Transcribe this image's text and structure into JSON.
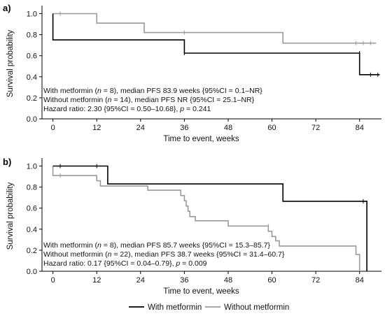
{
  "figure": {
    "legend": [
      {
        "label": "With metformin",
        "color": "#000000"
      },
      {
        "label": "Without metformin",
        "color": "#9a9a9a"
      }
    ]
  },
  "chart_data": [
    {
      "type": "line",
      "subtype": "kaplan-meier step",
      "panel_label": "a)",
      "xlabel": "Time to event, weeks",
      "ylabel": "Survival probability",
      "xlim": [
        -3,
        90
      ],
      "ylim": [
        0,
        1.05
      ],
      "xticks": [
        0,
        12,
        24,
        36,
        48,
        60,
        72,
        84
      ],
      "yticks": [
        0.0,
        0.2,
        0.4,
        0.6,
        0.8,
        1.0
      ],
      "ytick_labels": [
        "0.0",
        "0.2",
        "0.4",
        "0.6",
        "0.8",
        "1.0"
      ],
      "grid": false,
      "series": [
        {
          "name": "With metformin",
          "color": "#000000",
          "steps": [
            [
              0,
              1.0
            ],
            [
              0,
              0.75
            ],
            [
              36,
              0.75
            ],
            [
              36,
              0.625
            ],
            [
              84,
              0.625
            ],
            [
              84,
              0.42
            ],
            [
              89.5,
              0.42
            ]
          ],
          "censors": [
            [
              36,
              0.625
            ],
            [
              84,
              0.625
            ],
            [
              87,
              0.42
            ],
            [
              89,
              0.42
            ]
          ]
        },
        {
          "name": "Without metformin",
          "color": "#9a9a9a",
          "steps": [
            [
              0,
              1.0
            ],
            [
              12,
              1.0
            ],
            [
              12,
              0.91
            ],
            [
              25,
              0.91
            ],
            [
              25,
              0.82
            ],
            [
              63,
              0.82
            ],
            [
              63,
              0.72
            ],
            [
              88.5,
              0.72
            ]
          ],
          "censors": [
            [
              2,
              1.0
            ],
            [
              36,
              0.82
            ],
            [
              83,
              0.72
            ],
            [
              85,
              0.72
            ],
            [
              87,
              0.72
            ]
          ]
        }
      ],
      "annotations": [
        [
          "With metformin (",
          "n",
          " = 8), median PFS 83.9 weeks {95%CI = 0.1–NR}"
        ],
        [
          "Without metformin (",
          "n",
          " = 14), median PFS NR {95%CI = 25.1–NR}"
        ],
        [
          "Hazard ratio: 2.30 {95%CI = 0.50–10.68}, ",
          "p",
          " = 0.241"
        ]
      ]
    },
    {
      "type": "line",
      "subtype": "kaplan-meier step",
      "panel_label": "b)",
      "xlabel": "Time to event, weeks",
      "ylabel": "Survival probability",
      "xlim": [
        -3,
        90
      ],
      "ylim": [
        0,
        1.05
      ],
      "xticks": [
        0,
        12,
        24,
        36,
        48,
        60,
        72,
        84
      ],
      "yticks": [
        0.0,
        0.2,
        0.4,
        0.6,
        0.8,
        1.0
      ],
      "ytick_labels": [
        "0.0",
        "0.2",
        "0.4",
        "0.6",
        "0.8",
        "1.0"
      ],
      "grid": false,
      "series": [
        {
          "name": "With metformin",
          "color": "#000000",
          "steps": [
            [
              0,
              1.0
            ],
            [
              15,
              1.0
            ],
            [
              15,
              0.83
            ],
            [
              63,
              0.83
            ],
            [
              63,
              0.665
            ],
            [
              86,
              0.665
            ],
            [
              86,
              0.0
            ]
          ],
          "censors": [
            [
              2,
              1.0
            ],
            [
              12,
              1.0
            ],
            [
              85,
              0.665
            ]
          ]
        },
        {
          "name": "Without metformin",
          "color": "#9a9a9a",
          "steps": [
            [
              0,
              1.0
            ],
            [
              0,
              0.91
            ],
            [
              12,
              0.91
            ],
            [
              12,
              0.86
            ],
            [
              13,
              0.86
            ],
            [
              13,
              0.81
            ],
            [
              26,
              0.81
            ],
            [
              26,
              0.77
            ],
            [
              35,
              0.77
            ],
            [
              35,
              0.72
            ],
            [
              36,
              0.72
            ],
            [
              36,
              0.67
            ],
            [
              36.5,
              0.67
            ],
            [
              36.5,
              0.62
            ],
            [
              37,
              0.62
            ],
            [
              37,
              0.57
            ],
            [
              37.5,
              0.57
            ],
            [
              37.5,
              0.52
            ],
            [
              39,
              0.52
            ],
            [
              39,
              0.48
            ],
            [
              48,
              0.48
            ],
            [
              48,
              0.43
            ],
            [
              59,
              0.43
            ],
            [
              59,
              0.38
            ],
            [
              60,
              0.38
            ],
            [
              60,
              0.33
            ],
            [
              61,
              0.33
            ],
            [
              61,
              0.29
            ],
            [
              62,
              0.29
            ],
            [
              62,
              0.24
            ],
            [
              83,
              0.24
            ],
            [
              83,
              0.16
            ],
            [
              84,
              0.16
            ],
            [
              84,
              0.0
            ]
          ],
          "censors": [
            [
              2,
              0.91
            ],
            [
              59,
              0.43
            ]
          ]
        }
      ],
      "annotations": [
        [
          "With metformin (",
          "n",
          " = 8), median PFS 85.7 weeks {95%CI = 15.3–85.7}"
        ],
        [
          "Without metformin (",
          "n",
          " = 22), median PFS 38.7 weeks {95%CI = 31.4–60.7}"
        ],
        [
          "Hazard ratio: 0.17 {95%CI = 0.04–0.79}, ",
          "p",
          " = 0.009"
        ]
      ]
    }
  ]
}
